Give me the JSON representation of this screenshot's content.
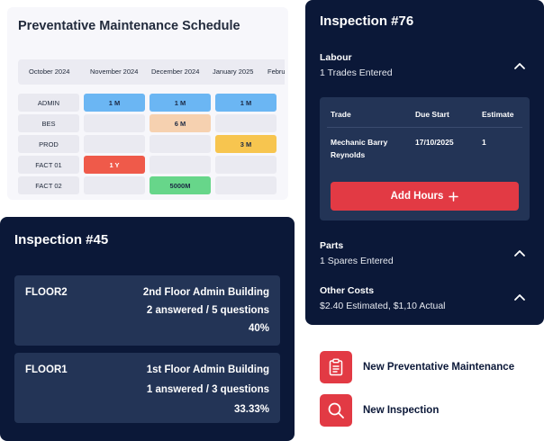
{
  "schedule": {
    "title": "Preventative Maintenance Schedule",
    "months": [
      "October 2024",
      "November 2024",
      "December 2024",
      "January 2025",
      "Febru"
    ],
    "rows": [
      {
        "label": "ADMIN",
        "cells": [
          "1 M",
          "1 M",
          "1 M"
        ]
      },
      {
        "label": "BES",
        "cells": [
          "",
          "6 M",
          ""
        ]
      },
      {
        "label": "PROD",
        "cells": [
          "",
          "",
          "3 M"
        ]
      },
      {
        "label": "FACT 01",
        "cells": [
          "1 Y",
          "",
          ""
        ]
      },
      {
        "label": "FACT 02",
        "cells": [
          "",
          "5000M",
          ""
        ]
      }
    ],
    "colors": {
      "blue": "#6bb6f3",
      "peach": "#f6d1b0",
      "yellow": "#f7c54f",
      "red": "#ef5a4a",
      "green": "#67d68a"
    }
  },
  "inspection45": {
    "title": "Inspection #45",
    "floors": [
      {
        "name": "FLOOR2",
        "building": "2nd Floor Admin Building",
        "answered": "2 answered / 5 questions",
        "percent": "40%"
      },
      {
        "name": "FLOOR1",
        "building": "1st Floor Admin Building",
        "answered": "1 answered / 3 questions",
        "percent": "33.33%"
      }
    ]
  },
  "inspection76": {
    "title": "Inspection #76",
    "labour": {
      "title": "Labour",
      "summary": "1 Trades Entered"
    },
    "table": {
      "headers": [
        "Trade",
        "Due Start",
        "Estimate"
      ],
      "row": {
        "trade_line1": "Mechanic Barry",
        "trade_line2": "Reynolds",
        "due_start": "17/10/2025",
        "estimate": "1"
      }
    },
    "add_hours": "Add Hours",
    "parts": {
      "title": "Parts",
      "summary": "1 Spares Entered"
    },
    "other_costs": {
      "title": "Other Costs",
      "summary": "$2.40 Estimated, $1,10 Actual"
    }
  },
  "actions": {
    "new_pm": "New Preventative Maintenance",
    "new_inspection": "New Inspection"
  },
  "theme": {
    "navy": "#0b1838",
    "panel": "#233456",
    "accent": "#e23a44"
  }
}
